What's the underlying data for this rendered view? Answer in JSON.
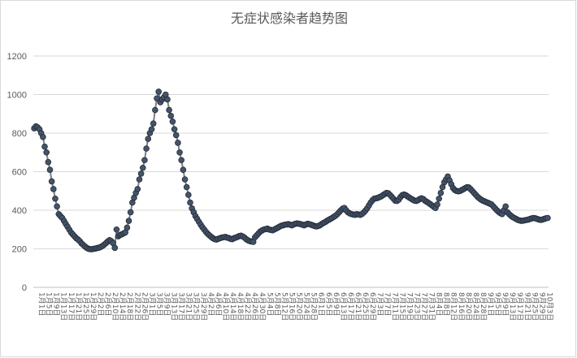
{
  "chart_data": {
    "type": "line",
    "title": "无症状感染者趋势图",
    "xlabel": "",
    "ylabel": "",
    "ylim": [
      0,
      1200
    ],
    "yticks": [
      0,
      200,
      400,
      600,
      800,
      1000,
      1200
    ],
    "grid": true,
    "legend": "none",
    "colors": {
      "marker": "#44546a",
      "marker_edge": "#222a35",
      "line": "#7f7f7f",
      "grid": "#d9d9d9",
      "text": "#595959"
    },
    "x_tick_labels": [
      "1月1日",
      "1月5日",
      "1月9日",
      "1月13日",
      "1月17日",
      "1月21日",
      "1月25日",
      "1月29日",
      "2月2日",
      "2月6日",
      "2月10日",
      "2月14日",
      "2月18日",
      "2月22日",
      "2月26日",
      "3月1日",
      "3月5日",
      "3月9日",
      "3月13日",
      "3月17日",
      "3月21日",
      "3月25日",
      "3月29日",
      "4月2日",
      "4月6日",
      "4月10日",
      "4月14日",
      "4月18日",
      "4月22日",
      "4月26日",
      "4月30日",
      "5月4日",
      "5月8日",
      "5月12日",
      "5月16日",
      "5月20日",
      "5月24日",
      "5月28日",
      "6月1日",
      "6月5日",
      "6月9日",
      "6月13日",
      "6月17日",
      "6月21日",
      "6月25日",
      "6月29日",
      "7月3日",
      "7月7日",
      "7月11日",
      "7月15日",
      "7月19日",
      "7月23日",
      "7月27日",
      "7月31日",
      "8月4日",
      "8月8日",
      "8月12日",
      "8月16日",
      "8月20日",
      "8月24日",
      "8月28日",
      "9月1日",
      "9月5日",
      "9月9日",
      "9月13日",
      "9月17日",
      "9月21日",
      "9月25日",
      "9月29日",
      "10月3日"
    ],
    "series": [
      {
        "values": [
          825,
          835,
          830,
          820,
          800,
          780,
          730,
          700,
          650,
          610,
          550,
          510,
          460,
          420,
          380,
          370,
          360,
          345,
          330,
          315,
          300,
          285,
          275,
          265,
          255,
          248,
          240,
          228,
          220,
          212,
          205,
          200,
          198,
          198,
          200,
          202,
          204,
          206,
          210,
          215,
          222,
          230,
          238,
          245,
          240,
          230,
          205,
          300,
          265,
          272,
          275,
          280,
          285,
          310,
          345,
          390,
          440,
          465,
          490,
          510,
          560,
          590,
          620,
          660,
          720,
          770,
          800,
          820,
          850,
          920,
          980,
          1015,
          960,
          975,
          985,
          1000,
          975,
          920,
          890,
          860,
          820,
          790,
          750,
          700,
          660,
          610,
          560,
          520,
          480,
          440,
          410,
          390,
          370,
          355,
          340,
          325,
          312,
          300,
          288,
          278,
          270,
          262,
          255,
          250,
          248,
          252,
          255,
          258,
          260,
          262,
          258,
          256,
          252,
          250,
          255,
          258,
          262,
          266,
          268,
          264,
          258,
          250,
          244,
          240,
          238,
          236,
          260,
          270,
          280,
          290,
          295,
          300,
          302,
          305,
          300,
          298,
          296,
          300,
          305,
          310,
          315,
          320,
          322,
          325,
          326,
          328,
          325,
          322,
          326,
          330,
          332,
          330,
          328,
          325,
          322,
          326,
          330,
          328,
          325,
          322,
          318,
          316,
          318,
          322,
          328,
          334,
          338,
          345,
          350,
          355,
          360,
          366,
          372,
          380,
          390,
          400,
          408,
          412,
          400,
          390,
          384,
          380,
          378,
          376,
          380,
          378,
          376,
          380,
          388,
          398,
          410,
          425,
          440,
          452,
          460,
          462,
          464,
          468,
          472,
          478,
          484,
          490,
          488,
          480,
          470,
          460,
          450,
          448,
          455,
          468,
          478,
          482,
          478,
          472,
          466,
          460,
          455,
          450,
          448,
          452,
          458,
          462,
          458,
          450,
          444,
          438,
          432,
          425,
          418,
          412,
          430,
          460,
          490,
          520,
          545,
          560,
          575,
          555,
          535,
          515,
          505,
          500,
          498,
          500,
          505,
          510,
          515,
          520,
          518,
          510,
          500,
          490,
          480,
          470,
          462,
          455,
          450,
          446,
          442,
          438,
          434,
          430,
          420,
          410,
          400,
          392,
          385,
          380,
          400,
          420,
          390,
          380,
          372,
          365,
          360,
          355,
          350,
          347,
          345,
          346,
          348,
          350,
          352,
          355,
          358,
          360,
          358,
          355,
          352,
          350,
          352,
          355,
          358,
          360
        ]
      }
    ]
  }
}
